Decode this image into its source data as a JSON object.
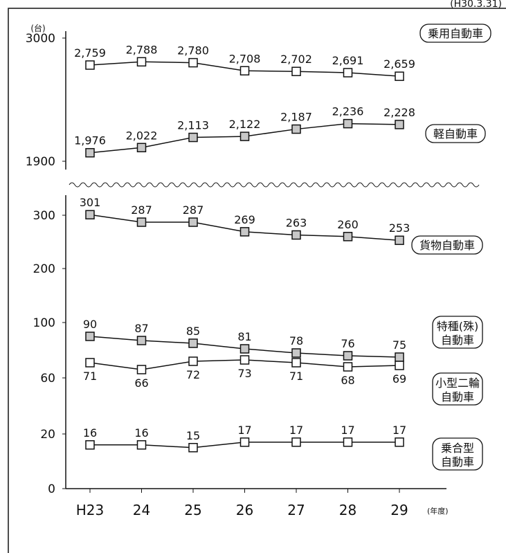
{
  "corner_label": "(H30.3.31)",
  "unit_label": "(台)",
  "fiscal_year_label": "(年度)",
  "chart_data": {
    "type": "line",
    "categories": [
      "H23",
      "24",
      "25",
      "26",
      "27",
      "28",
      "29"
    ],
    "upper_ticks": [
      "3000",
      "1900"
    ],
    "lower_ticks": [
      "300",
      "200",
      "100",
      "60",
      "20",
      "0"
    ],
    "series": [
      {
        "name": "乗用自動車",
        "values": [
          2759,
          2788,
          2780,
          2708,
          2702,
          2691,
          2659
        ],
        "labels": [
          "2,759",
          "2,788",
          "2,780",
          "2,708",
          "2,702",
          "2,691",
          "2,659"
        ],
        "marker": "#ffffff",
        "panel": "upper"
      },
      {
        "name": "軽自動車",
        "values": [
          1976,
          2022,
          2113,
          2122,
          2187,
          2236,
          2228
        ],
        "labels": [
          "1,976",
          "2,022",
          "2,113",
          "2,122",
          "2,187",
          "2,236",
          "2,228"
        ],
        "marker": "#c8c8c8",
        "panel": "upper"
      },
      {
        "name": "貨物自動車",
        "values": [
          301,
          287,
          287,
          269,
          263,
          260,
          253
        ],
        "labels": [
          "301",
          "287",
          "287",
          "269",
          "263",
          "260",
          "253"
        ],
        "marker": "#c8c8c8",
        "panel": "lower"
      },
      {
        "name": "特種(殊)自動車",
        "values": [
          90,
          87,
          85,
          81,
          78,
          76,
          75
        ],
        "labels": [
          "90",
          "87",
          "85",
          "81",
          "78",
          "76",
          "75"
        ],
        "marker": "#c8c8c8",
        "panel": "lower"
      },
      {
        "name": "小型二輪自動車",
        "values": [
          71,
          66,
          72,
          73,
          71,
          68,
          69
        ],
        "labels": [
          "71",
          "66",
          "72",
          "73",
          "71",
          "68",
          "69"
        ],
        "marker": "#ffffff",
        "panel": "lower"
      },
      {
        "name": "乗合型自動車",
        "values": [
          16,
          16,
          15,
          17,
          17,
          17,
          17
        ],
        "labels": [
          "16",
          "16",
          "15",
          "17",
          "17",
          "17",
          "17"
        ],
        "marker": "#ffffff",
        "panel": "lower"
      }
    ],
    "legend_labels": [
      [
        "乗用自動車"
      ],
      [
        "軽自動車"
      ],
      [
        "貨物自動車"
      ],
      [
        "特種(殊)",
        "自動車"
      ],
      [
        "小型二輪",
        "自動車"
      ],
      [
        "乗合型",
        "自動車"
      ]
    ]
  }
}
